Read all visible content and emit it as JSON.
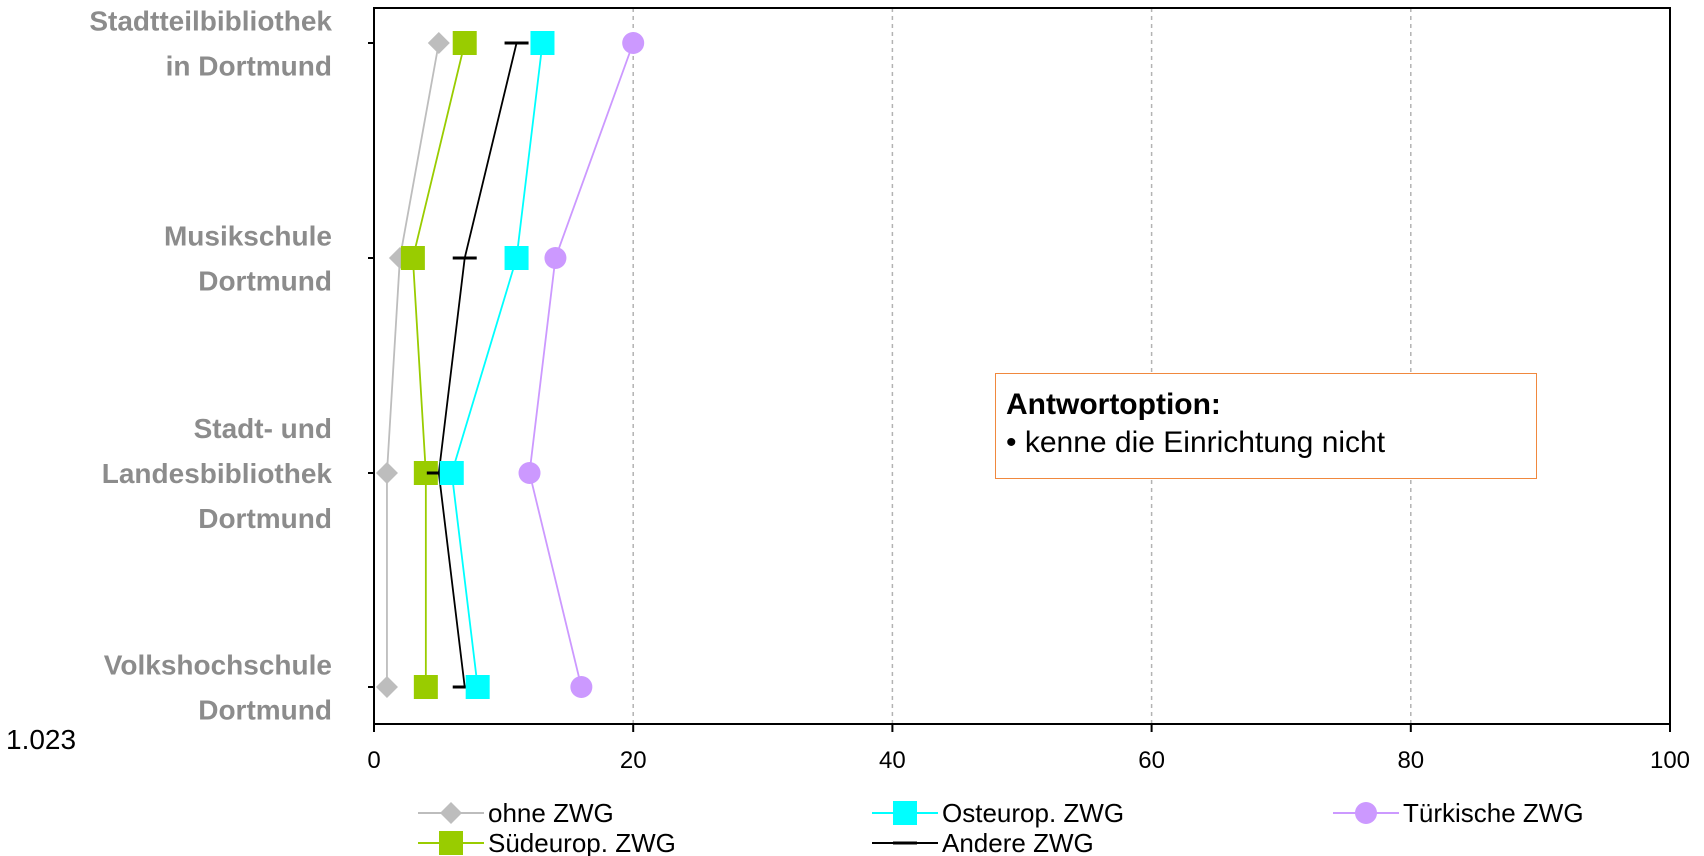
{
  "chart_data": {
    "type": "line",
    "orientation": "horizontal",
    "categories": [
      [
        "Stadtteilbibliothek",
        "in Dortmund"
      ],
      [
        "Musikschule",
        "Dortmund"
      ],
      [
        "Stadt- und",
        "Landesbibliothek",
        "Dortmund"
      ],
      [
        "Volkshochschule",
        "Dortmund"
      ]
    ],
    "xlim": [
      0,
      100
    ],
    "xticks": [
      0,
      20,
      40,
      60,
      80,
      100
    ],
    "x_grid": true,
    "series": [
      {
        "name": "ohne ZWG",
        "color": "#bdbdbd",
        "marker": "diamond",
        "values": [
          5,
          2,
          1,
          1
        ]
      },
      {
        "name": "Südeurop. ZWG",
        "color": "#99cc00",
        "marker": "square",
        "values": [
          7,
          3,
          4,
          4
        ]
      },
      {
        "name": "Andere ZWG",
        "color": "#000000",
        "marker": "dash",
        "values": [
          11,
          7,
          5,
          7
        ]
      },
      {
        "name": "Osteurop. ZWG",
        "color": "#00ffff",
        "marker": "square",
        "values": [
          13,
          11,
          6,
          8
        ]
      },
      {
        "name": "Türkische ZWG",
        "color": "#cc99ff",
        "marker": "circle",
        "values": [
          20,
          14,
          12,
          16
        ]
      }
    ],
    "legend": {
      "placement": "bottom"
    },
    "annotation": {
      "title": "Antwortoption:",
      "text": "• kenne die Einrichtung nicht"
    }
  },
  "footnote": "1.023"
}
